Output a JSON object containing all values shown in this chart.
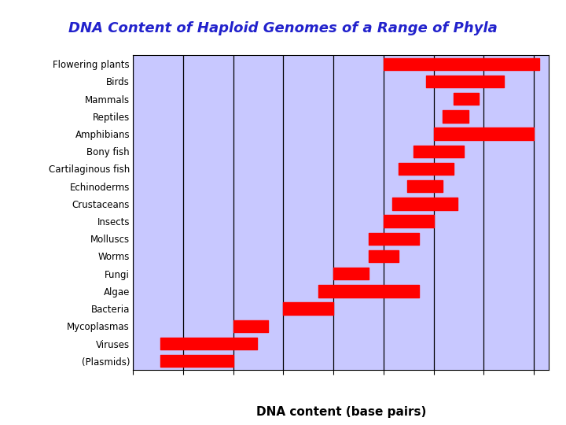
{
  "title": "DNA Content of Haploid Genomes of a Range of Phyla",
  "xlabel": "DNA content (base pairs)",
  "background_color": "#c8c8ff",
  "outer_background": "#ffffff",
  "bar_color": "#ff0000",
  "title_color": "#2222cc",
  "text_color": "#000000",
  "organisms": [
    "Flowering plants",
    "Birds",
    "Mammals",
    "Reptiles",
    "Amphibians",
    "Bony fish",
    "Cartilaginous fish",
    "Echinoderms",
    "Crustaceans",
    "Insects",
    "Molluscs",
    "Worms",
    "Fungi",
    "Algae",
    "Bacteria",
    "Mycoplasmas",
    "Viruses",
    "(Plasmids)"
  ],
  "ranges": [
    [
      100000000.0,
      130000000000.0
    ],
    [
      700000000.0,
      25000000000.0
    ],
    [
      2500000000.0,
      8000000000.0
    ],
    [
      1500000000.0,
      5000000000.0
    ],
    [
      1000000000.0,
      100000000000.0
    ],
    [
      400000000.0,
      4000000000.0
    ],
    [
      200000000.0,
      2500000000.0
    ],
    [
      300000000.0,
      1500000000.0
    ],
    [
      150000000.0,
      3000000000.0
    ],
    [
      100000000.0,
      1000000000.0
    ],
    [
      50000000.0,
      500000000.0
    ],
    [
      50000000.0,
      200000000.0
    ],
    [
      10000000.0,
      50000000.0
    ],
    [
      5000000.0,
      500000000.0
    ],
    [
      1000000.0,
      10000000.0
    ],
    [
      100000.0,
      500000.0
    ],
    [
      3500.0,
      300000.0
    ],
    [
      3500.0,
      100000.0
    ]
  ],
  "xmin": 1000.0,
  "xmax": 200000000000.0,
  "decade_positions": [
    1000.0,
    10000.0,
    100000.0,
    1000000.0,
    10000000.0,
    100000000.0,
    1000000000.0,
    10000000000.0,
    100000000000.0
  ],
  "bar_height": 0.7
}
